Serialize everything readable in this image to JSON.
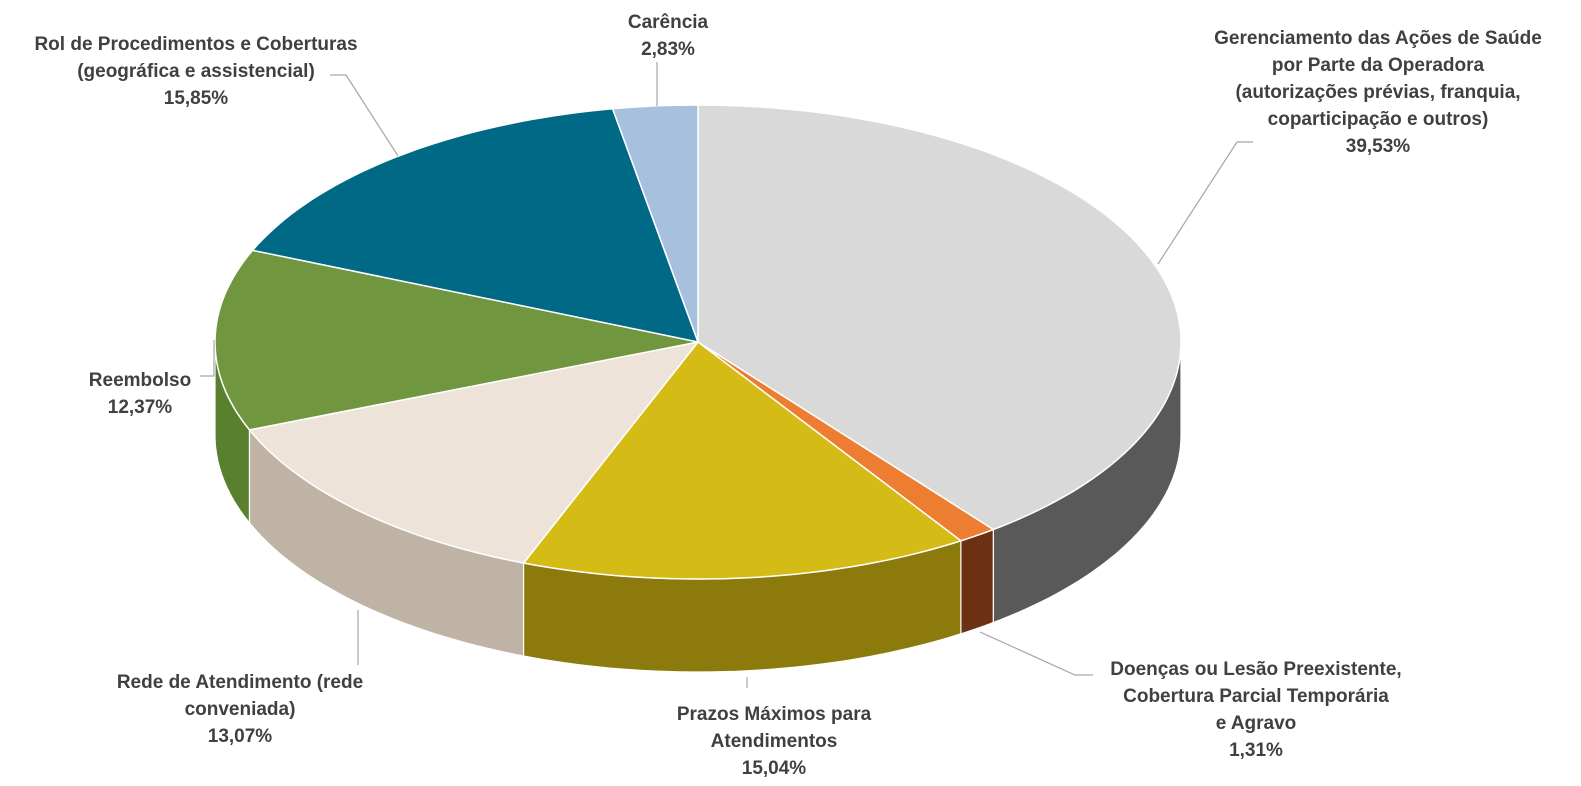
{
  "chart_data": {
    "type": "pie",
    "title": "",
    "three_d": true,
    "start_angle_deg": 0,
    "direction": "clockwise",
    "legend": "none",
    "slices": [
      {
        "label_lines": [
          "Gerenciamento das Ações de Saúde",
          "por Parte da Operadora",
          "(autorizações prévias, franquia,",
          "coparticipação e outros)"
        ],
        "value": 39.53,
        "value_label": "39,53%",
        "color": "#d9d9d9",
        "side_color": "#595959"
      },
      {
        "label_lines": [
          "Doenças ou Lesão Preexistente,",
          "Cobertura Parcial Temporária",
          "e Agravo"
        ],
        "value": 1.31,
        "value_label": "1,31%",
        "color": "#ed7d31",
        "side_color": "#6b3112"
      },
      {
        "label_lines": [
          "Prazos Máximos para",
          "Atendimentos"
        ],
        "value": 15.04,
        "value_label": "15,04%",
        "color": "#d4bb16",
        "side_color": "#8c7a0c"
      },
      {
        "label_lines": [
          "Rede de Atendimento (rede",
          "conveniada)"
        ],
        "value": 13.07,
        "value_label": "13,07%",
        "color": "#ede3d8",
        "side_color": "#bfb3a5"
      },
      {
        "label_lines": [
          "Reembolso"
        ],
        "value": 12.37,
        "value_label": "12,37%",
        "color": "#70963f",
        "side_color": "#58802f"
      },
      {
        "label_lines": [
          "Rol de Procedimentos e Coberturas",
          "(geográfica e assistencial)"
        ],
        "value": 15.85,
        "value_label": "15,85%",
        "color": "#006986",
        "side_color": "#004a5e"
      },
      {
        "label_lines": [
          "Carência"
        ],
        "value": 2.83,
        "value_label": "2,83%",
        "color": "#a7c0dd",
        "side_color": "#7d93ad"
      }
    ]
  }
}
